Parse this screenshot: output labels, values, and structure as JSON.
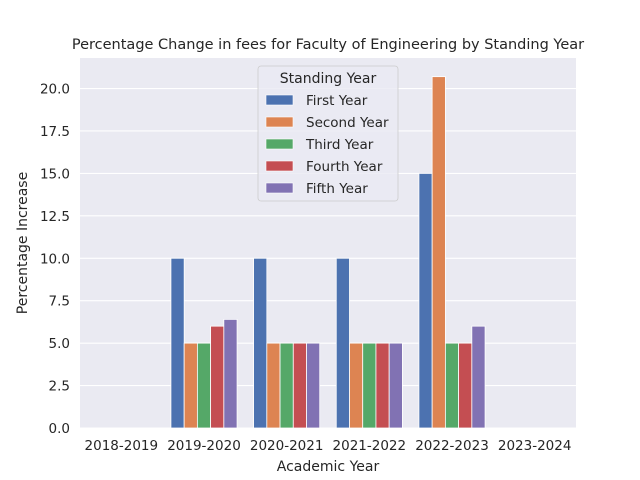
{
  "chart_data": {
    "type": "bar",
    "title": "Percentage Change in fees for Faculty of Engineering by Standing Year",
    "xlabel": "Academic Year",
    "ylabel": "Percentage Increase",
    "categories": [
      "2018-2019",
      "2019-2020",
      "2020-2021",
      "2021-2022",
      "2022-2023",
      "2023-2024"
    ],
    "ylim": [
      0,
      21.8
    ],
    "yticks": [
      "0.0",
      "2.5",
      "5.0",
      "7.5",
      "10.0",
      "12.5",
      "15.0",
      "17.5",
      "20.0"
    ],
    "grid": true,
    "legend": {
      "title": "Standing Year",
      "placement": "top-center"
    },
    "series": [
      {
        "name": "First Year",
        "color": "#4c72b0",
        "values": [
          0,
          10.0,
          10.0,
          10.0,
          15.0,
          0
        ]
      },
      {
        "name": "Second Year",
        "color": "#dd8452",
        "values": [
          0,
          5.0,
          5.0,
          5.0,
          20.7,
          0
        ]
      },
      {
        "name": "Third Year",
        "color": "#55a868",
        "values": [
          0,
          5.0,
          5.0,
          5.0,
          5.0,
          0
        ]
      },
      {
        "name": "Fourth Year",
        "color": "#c44e52",
        "values": [
          0,
          6.0,
          5.0,
          5.0,
          5.0,
          0
        ]
      },
      {
        "name": "Fifth Year",
        "color": "#8172b3",
        "values": [
          0,
          6.4,
          5.0,
          5.0,
          6.0,
          0
        ]
      }
    ]
  }
}
